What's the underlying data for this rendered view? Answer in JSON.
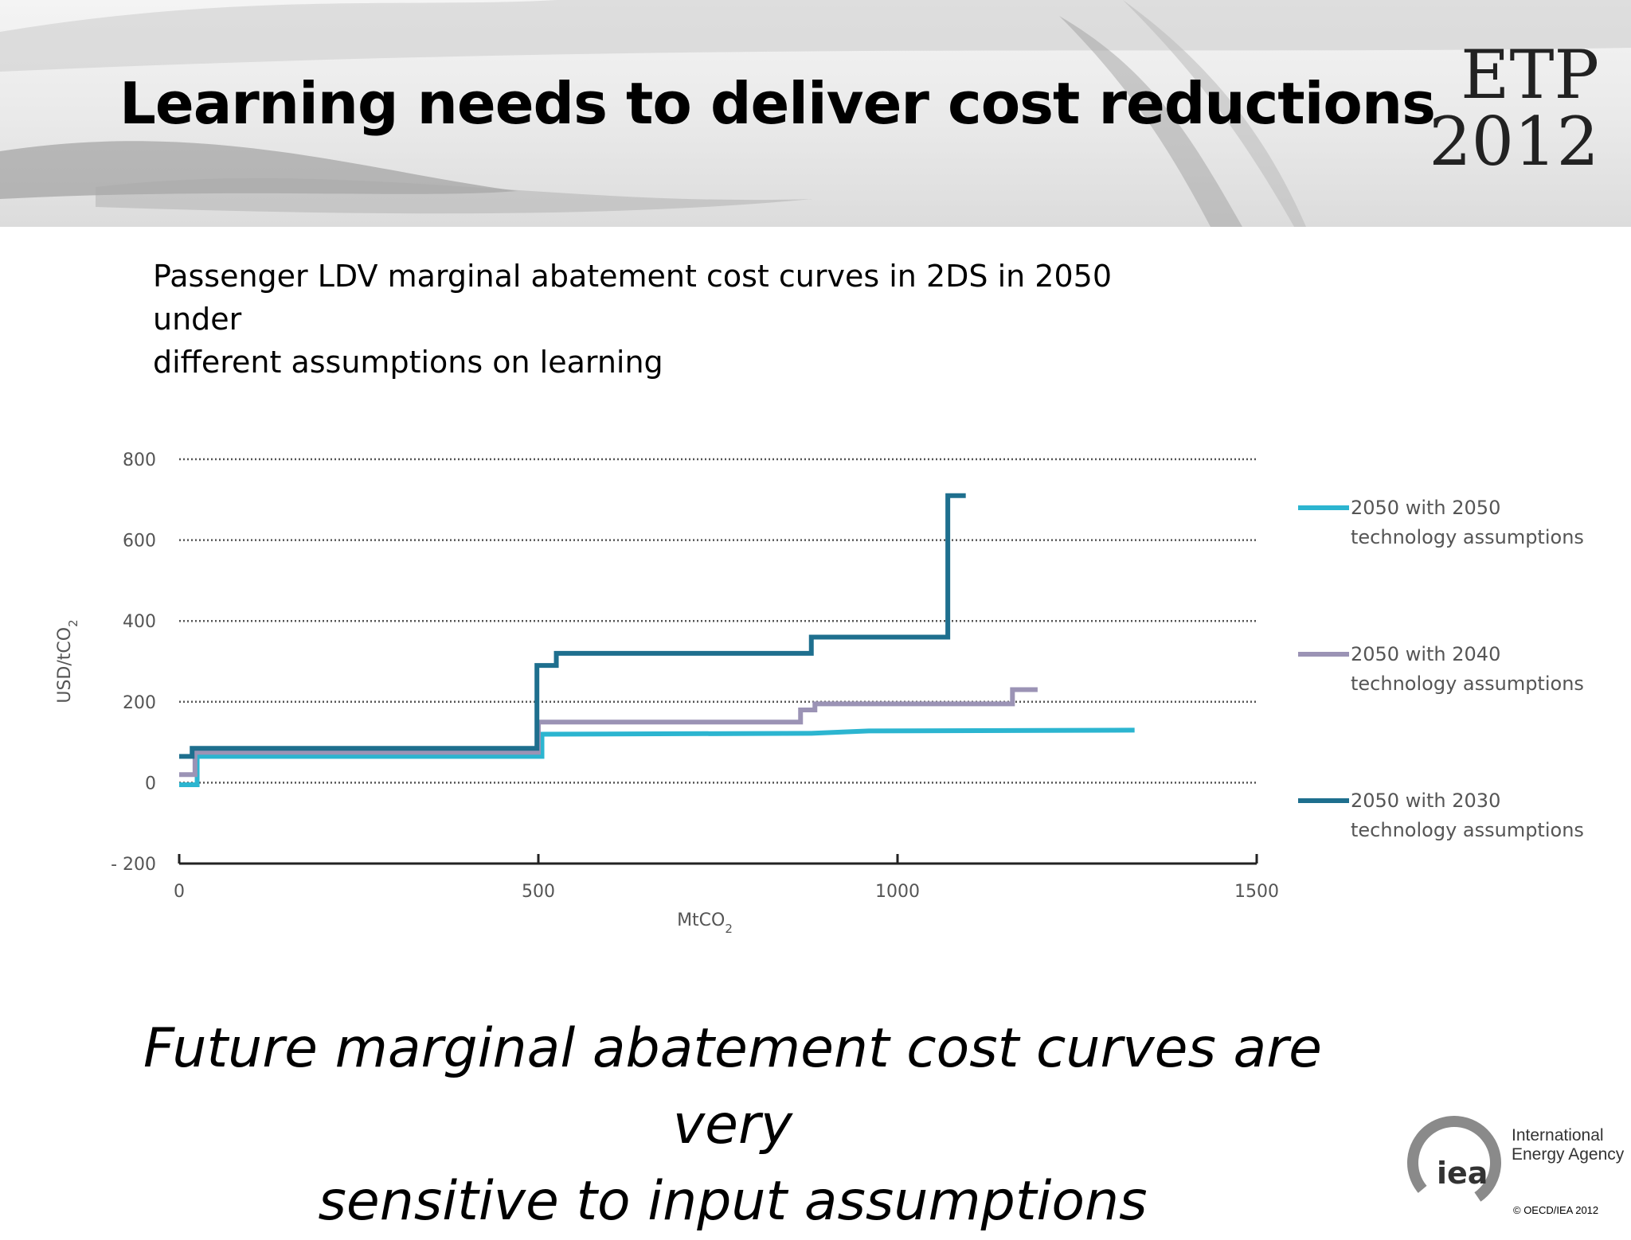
{
  "slide": {
    "title": "Learning needs to deliver cost reductions",
    "brand_line1": "ETP",
    "brand_line2": "2012",
    "caption_line1": "Passenger LDV marginal abatement cost curves in 2DS in 2050 under",
    "caption_line2": "different assumptions on learning",
    "footer_line1": "Future marginal abatement cost curves are very",
    "footer_line2": "sensitive to input assumptions",
    "agency_line1": "International",
    "agency_line2": "Energy Agency",
    "logo_text": "iea",
    "copyright": "© OECD/IEA 2012"
  },
  "chart_data": {
    "type": "line",
    "xlabel": "MtCO",
    "xlabel_sub": "2",
    "ylabel": "USD/tCO",
    "ylabel_sub": "2",
    "xlim": [
      0,
      1500
    ],
    "ylim": [
      -200,
      800
    ],
    "x_ticks": [
      0,
      500,
      1000,
      1500
    ],
    "x_tick_labels": [
      "0",
      "500",
      "1000",
      "1500"
    ],
    "y_ticks": [
      800,
      600,
      400,
      200,
      0,
      -200
    ],
    "y_tick_labels": [
      "800",
      "600",
      "400",
      "200",
      "0",
      "- 200"
    ],
    "grid": "horizontal dotted",
    "legend_position": "right",
    "series": [
      {
        "name": "2050 with 2050 technology assumptions",
        "legend_line1": "2050 with 2050",
        "legend_line2": "technology assumptions",
        "color": "#2cb5d0",
        "x": [
          0,
          25,
          25,
          505,
          505,
          880,
          960,
          1330
        ],
        "y": [
          -5,
          -5,
          65,
          65,
          120,
          122,
          128,
          130
        ]
      },
      {
        "name": "2050 with 2040 technology assumptions",
        "legend_line1": "2050 with 2040",
        "legend_line1_val": "",
        "legend_line2": "technology assumptions",
        "color": "#9b93b5",
        "x": [
          0,
          22,
          22,
          500,
          500,
          865,
          865,
          885,
          885,
          1160,
          1160,
          1195
        ],
        "y": [
          20,
          20,
          75,
          75,
          150,
          150,
          180,
          180,
          195,
          195,
          230,
          230
        ]
      },
      {
        "name": "2050 with 2030 technology assumptions",
        "legend_line1": "2050 with 2030",
        "legend_line2": "technology assumptions",
        "color": "#1e6f8e",
        "x": [
          0,
          18,
          18,
          498,
          498,
          525,
          525,
          880,
          880,
          1070,
          1070,
          1095
        ],
        "y": [
          65,
          65,
          85,
          85,
          290,
          290,
          320,
          320,
          360,
          360,
          710,
          710
        ]
      }
    ]
  }
}
